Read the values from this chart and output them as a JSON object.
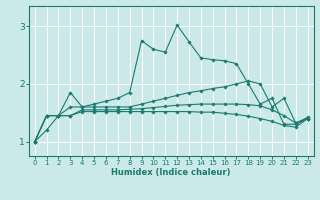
{
  "xlabel": "Humidex (Indice chaleur)",
  "background_color": "#cce9e9",
  "grid_color": "#ffffff",
  "line_color": "#1a7a6e",
  "xlim": [
    -0.5,
    23.5
  ],
  "ylim": [
    0.75,
    3.35
  ],
  "yticks": [
    1,
    2,
    3
  ],
  "xticks": [
    0,
    1,
    2,
    3,
    4,
    5,
    6,
    7,
    8,
    9,
    10,
    11,
    12,
    13,
    14,
    15,
    16,
    17,
    18,
    19,
    20,
    21,
    22,
    23
  ],
  "series": [
    {
      "x": [
        0,
        1,
        2,
        3,
        4,
        5,
        6,
        7,
        8,
        9,
        10,
        11,
        12,
        13,
        14,
        15,
        16,
        17,
        18,
        19,
        20,
        21,
        22,
        23
      ],
      "y": [
        1.0,
        1.2,
        1.45,
        1.85,
        1.6,
        1.65,
        1.7,
        1.75,
        1.85,
        2.75,
        2.6,
        2.55,
        3.02,
        2.73,
        2.45,
        2.42,
        2.4,
        2.35,
        2.0,
        1.65,
        1.75,
        1.3,
        1.3,
        1.4
      ]
    },
    {
      "x": [
        0,
        1,
        2,
        3,
        4,
        5,
        6,
        7,
        8,
        9,
        10,
        11,
        12,
        13,
        14,
        15,
        16,
        17,
        18,
        19,
        20,
        21,
        22,
        23
      ],
      "y": [
        1.0,
        1.45,
        1.45,
        1.6,
        1.6,
        1.6,
        1.6,
        1.6,
        1.6,
        1.65,
        1.7,
        1.75,
        1.8,
        1.85,
        1.88,
        1.92,
        1.95,
        2.0,
        2.05,
        2.0,
        1.6,
        1.75,
        1.32,
        1.42
      ]
    },
    {
      "x": [
        0,
        1,
        2,
        3,
        4,
        5,
        6,
        7,
        8,
        9,
        10,
        11,
        12,
        13,
        14,
        15,
        16,
        17,
        18,
        19,
        20,
        21,
        22,
        23
      ],
      "y": [
        1.0,
        1.45,
        1.45,
        1.45,
        1.55,
        1.55,
        1.55,
        1.55,
        1.56,
        1.57,
        1.59,
        1.61,
        1.63,
        1.64,
        1.65,
        1.65,
        1.65,
        1.65,
        1.64,
        1.62,
        1.55,
        1.45,
        1.32,
        1.4
      ]
    },
    {
      "x": [
        0,
        1,
        2,
        3,
        4,
        5,
        6,
        7,
        8,
        9,
        10,
        11,
        12,
        13,
        14,
        15,
        16,
        17,
        18,
        19,
        20,
        21,
        22,
        23
      ],
      "y": [
        1.0,
        1.45,
        1.45,
        1.45,
        1.52,
        1.52,
        1.52,
        1.52,
        1.52,
        1.52,
        1.52,
        1.52,
        1.52,
        1.52,
        1.51,
        1.51,
        1.49,
        1.47,
        1.44,
        1.4,
        1.35,
        1.28,
        1.25,
        1.4
      ]
    }
  ]
}
